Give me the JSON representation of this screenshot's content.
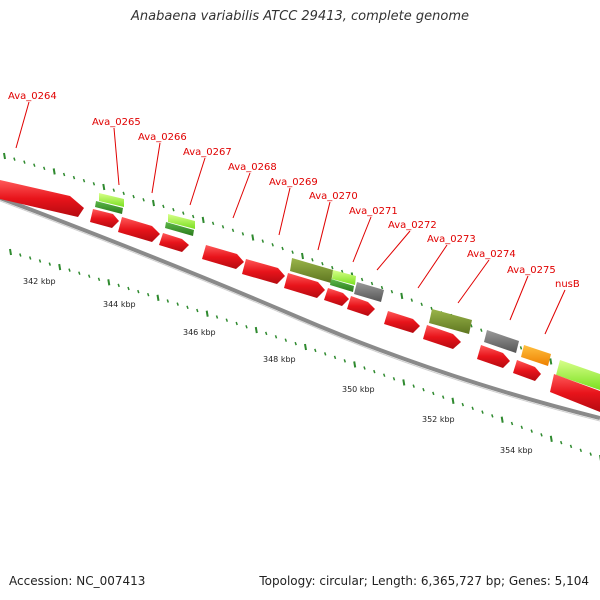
{
  "title": "Anabaena variabilis ATCC 29413, complete genome",
  "footer": {
    "accession": "Accession: NC_007413",
    "summary": "Topology: circular; Length: 6,365,727 bp; Genes: 5,104"
  },
  "colors": {
    "gene_label": "#e00000",
    "forward_gene": "#e8141b",
    "reverse_gene": "#ee1111",
    "backbone": "#7a7a7a",
    "tick": "#2f8a2f",
    "olive": "#7e9630",
    "lime": "#8cf028",
    "dark_green": "#3c9a28",
    "gray": "#6e6e6e",
    "orange": "#ff9a00"
  },
  "gene_labels": [
    "Ava_0264",
    "Ava_0265",
    "Ava_0266",
    "Ava_0267",
    "Ava_0268",
    "Ava_0269",
    "Ava_0270",
    "Ava_0271",
    "Ava_0272",
    "Ava_0273",
    "Ava_0274",
    "Ava_0275",
    "nusB"
  ],
  "tick_labels": [
    "342 kbp",
    "344 kbp",
    "346 kbp",
    "348 kbp",
    "350 kbp",
    "352 kbp",
    "354 kbp"
  ],
  "features": [
    {
      "type": "forward-gene",
      "color": "red"
    },
    {
      "type": "feature",
      "color": "lime"
    },
    {
      "type": "feature",
      "color": "dark-green"
    },
    {
      "type": "feature",
      "color": "lime"
    },
    {
      "type": "feature",
      "color": "dark-green"
    },
    {
      "type": "reverse-gene",
      "color": "red"
    },
    {
      "type": "feature",
      "color": "olive"
    },
    {
      "type": "feature",
      "color": "lime"
    },
    {
      "type": "feature",
      "color": "dark-green"
    },
    {
      "type": "feature",
      "color": "gray"
    },
    {
      "type": "feature",
      "color": "olive"
    },
    {
      "type": "feature",
      "color": "gray"
    },
    {
      "type": "feature",
      "color": "orange"
    },
    {
      "type": "feature",
      "color": "lime"
    }
  ]
}
